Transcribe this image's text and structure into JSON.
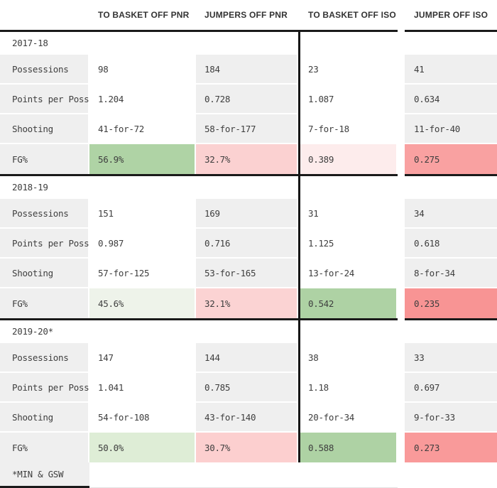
{
  "chart_data": {
    "type": "table",
    "columns": [
      "TO BASKET OFF PNR",
      "JUMPERS OFF PNR",
      "TO BASKET OFF ISO",
      "JUMPER OFF ISO"
    ],
    "row_labels": [
      "Possessions",
      "Points per Poss",
      "Shooting",
      "FG%"
    ],
    "sections": [
      {
        "year": "2017-18",
        "rows": [
          {
            "label": "Possessions",
            "values": [
              "98",
              "184",
              "23",
              "41"
            ]
          },
          {
            "label": "Points per Poss",
            "values": [
              "1.204",
              "0.728",
              "1.087",
              "0.634"
            ]
          },
          {
            "label": "Shooting",
            "values": [
              "41-for-72",
              "58-for-177",
              "7-for-18",
              "11-for-40"
            ]
          },
          {
            "label": "FG%",
            "values": [
              "56.9%",
              "32.7%",
              "0.389",
              "0.275"
            ],
            "colors": [
              "#afd3a5",
              "#fbd1d1",
              "#fdecec",
              "#f9a1a1"
            ]
          }
        ]
      },
      {
        "year": "2018-19",
        "rows": [
          {
            "label": "Possessions",
            "values": [
              "151",
              "169",
              "31",
              "34"
            ]
          },
          {
            "label": "Points per Poss",
            "values": [
              "0.987",
              "0.716",
              "1.125",
              "0.618"
            ]
          },
          {
            "label": "Shooting",
            "values": [
              "57-for-125",
              "53-for-165",
              "13-for-24",
              "8-for-34"
            ]
          },
          {
            "label": "FG%",
            "values": [
              "45.6%",
              "32.1%",
              "0.542",
              "0.235"
            ],
            "colors": [
              "#eef3ea",
              "#fbd3d3",
              "#aed2a4",
              "#f89494"
            ]
          }
        ]
      },
      {
        "year": "2019-20*",
        "rows": [
          {
            "label": "Possessions",
            "values": [
              "147",
              "144",
              "38",
              "33"
            ]
          },
          {
            "label": "Points per Poss",
            "values": [
              "1.041",
              "0.785",
              "1.18",
              "0.697"
            ]
          },
          {
            "label": "Shooting",
            "values": [
              "54-for-108",
              "43-for-140",
              "20-for-34",
              "9-for-33"
            ]
          },
          {
            "label": "FG%",
            "values": [
              "50.0%",
              "30.7%",
              "0.588",
              "0.273"
            ],
            "colors": [
              "#deedd6",
              "#fccfcf",
              "#aed2a4",
              "#f99a9a"
            ]
          }
        ]
      }
    ],
    "footnote": "*MIN & GSW",
    "layout": {
      "divider_color": "#1a1a1a",
      "gray_column_color": "#efefef",
      "text_color": "#3e3e3e",
      "green_strong": "#afd3a5",
      "red_strong": "#f89494"
    }
  }
}
